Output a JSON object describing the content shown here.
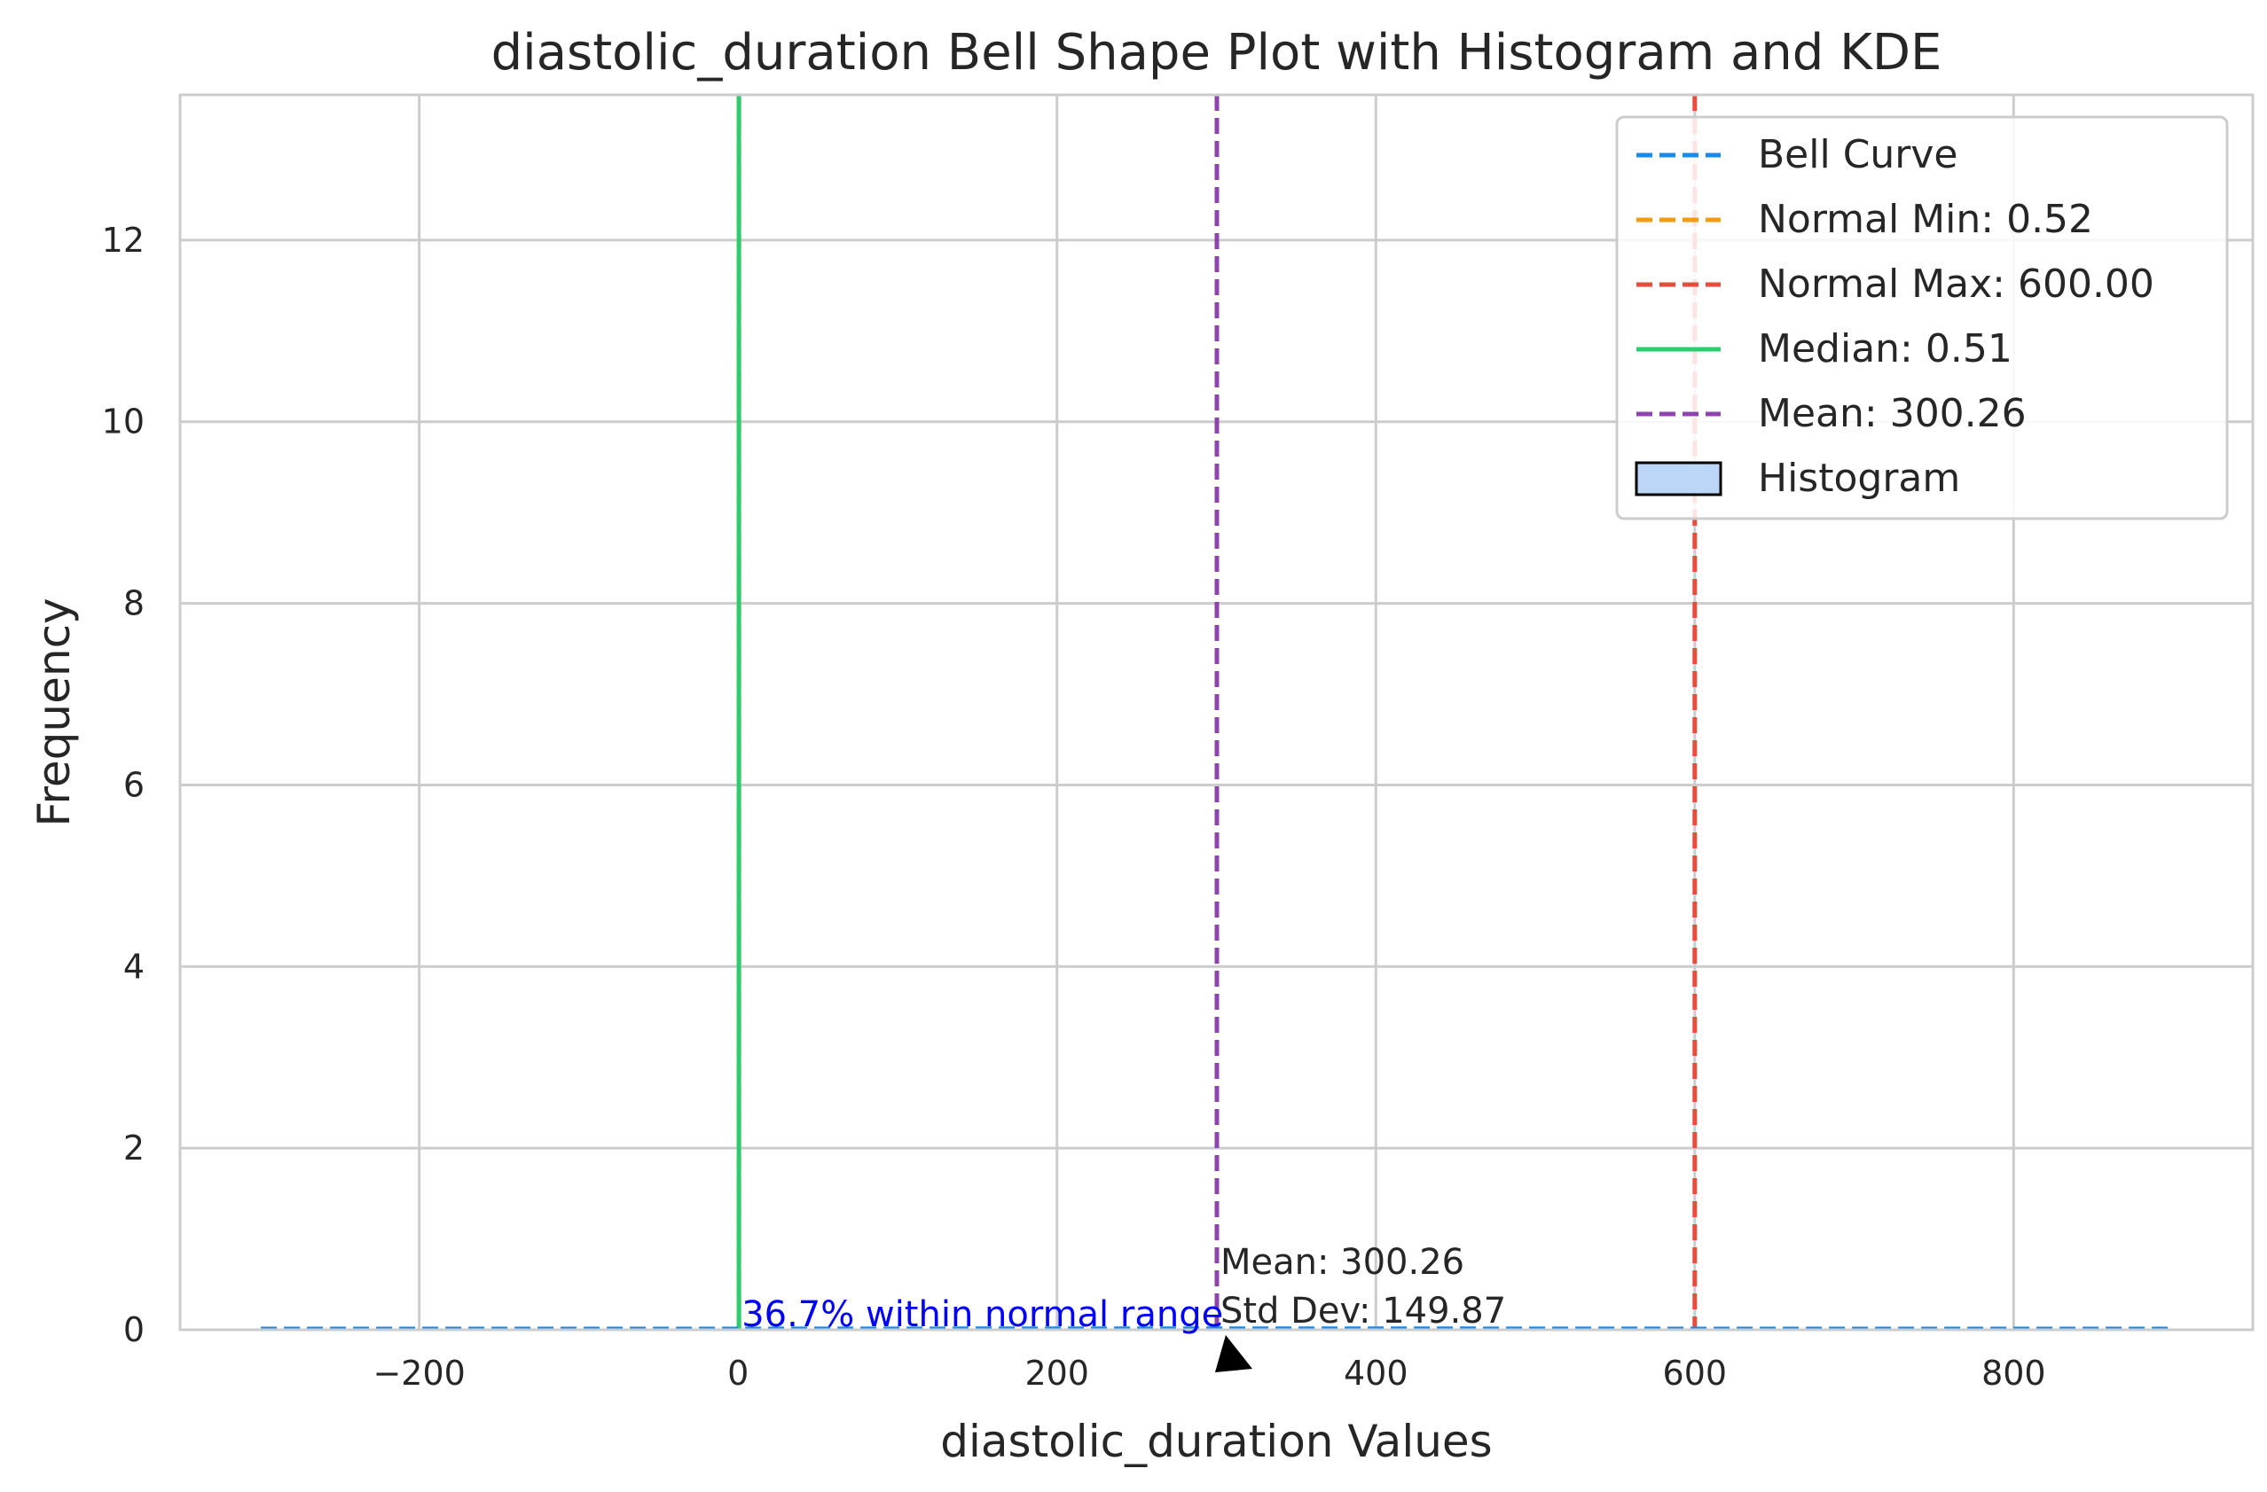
{
  "chart_data": {
    "type": "histogram",
    "title": "diastolic_duration Bell Shape Plot with Histogram and KDE",
    "xlabel": "diastolic_duration Values",
    "ylabel": "Frequency",
    "xlim": [
      -350,
      950
    ],
    "ylim": [
      0,
      13.6
    ],
    "xticks": [
      -200,
      0,
      200,
      400,
      600,
      800
    ],
    "xtick_labels": [
      "−200",
      "0",
      "200",
      "400",
      "600",
      "800"
    ],
    "yticks": [
      0,
      2,
      4,
      6,
      8,
      10,
      12
    ],
    "ytick_labels": [
      "0",
      "2",
      "4",
      "6",
      "8",
      "10",
      "12"
    ],
    "grid": true,
    "legend_position": "top-right",
    "vlines": [
      {
        "key": "normal_min",
        "x": 0.52,
        "color": "#f39c12",
        "style": "dashed"
      },
      {
        "key": "median",
        "x": 0.51,
        "color": "#2ecc71",
        "style": "solid"
      },
      {
        "key": "mean",
        "x": 300.26,
        "color": "#8e44ad",
        "style": "dashed"
      },
      {
        "key": "normal_max",
        "x": 600.0,
        "color": "#e74c3c",
        "style": "dashed"
      }
    ],
    "bell_curve": {
      "x_range": [
        -299.35,
        899.87
      ],
      "mean": 300.26,
      "std": 149.87,
      "color": "#1e88e5",
      "style": "dashed"
    },
    "legend": [
      {
        "label": "Bell Curve",
        "color": "#1e88e5",
        "kind": "dashed"
      },
      {
        "label": "Normal Min: 0.52",
        "color": "#f39c12",
        "kind": "dashed"
      },
      {
        "label": "Normal Max: 600.00",
        "color": "#e74c3c",
        "kind": "dashed"
      },
      {
        "label": "Median: 0.51",
        "color": "#2ecc71",
        "kind": "solid"
      },
      {
        "label": "Mean: 300.26",
        "color": "#8e44ad",
        "kind": "dashed"
      },
      {
        "label": "Histogram",
        "color": "#bcd6f7",
        "kind": "patch"
      }
    ],
    "annotations": {
      "within_range_text": "36.7% within normal range",
      "within_range_color": "#0000ff",
      "stats_line1": "Mean: 300.26",
      "stats_line2": "Std Dev: 149.87"
    }
  }
}
